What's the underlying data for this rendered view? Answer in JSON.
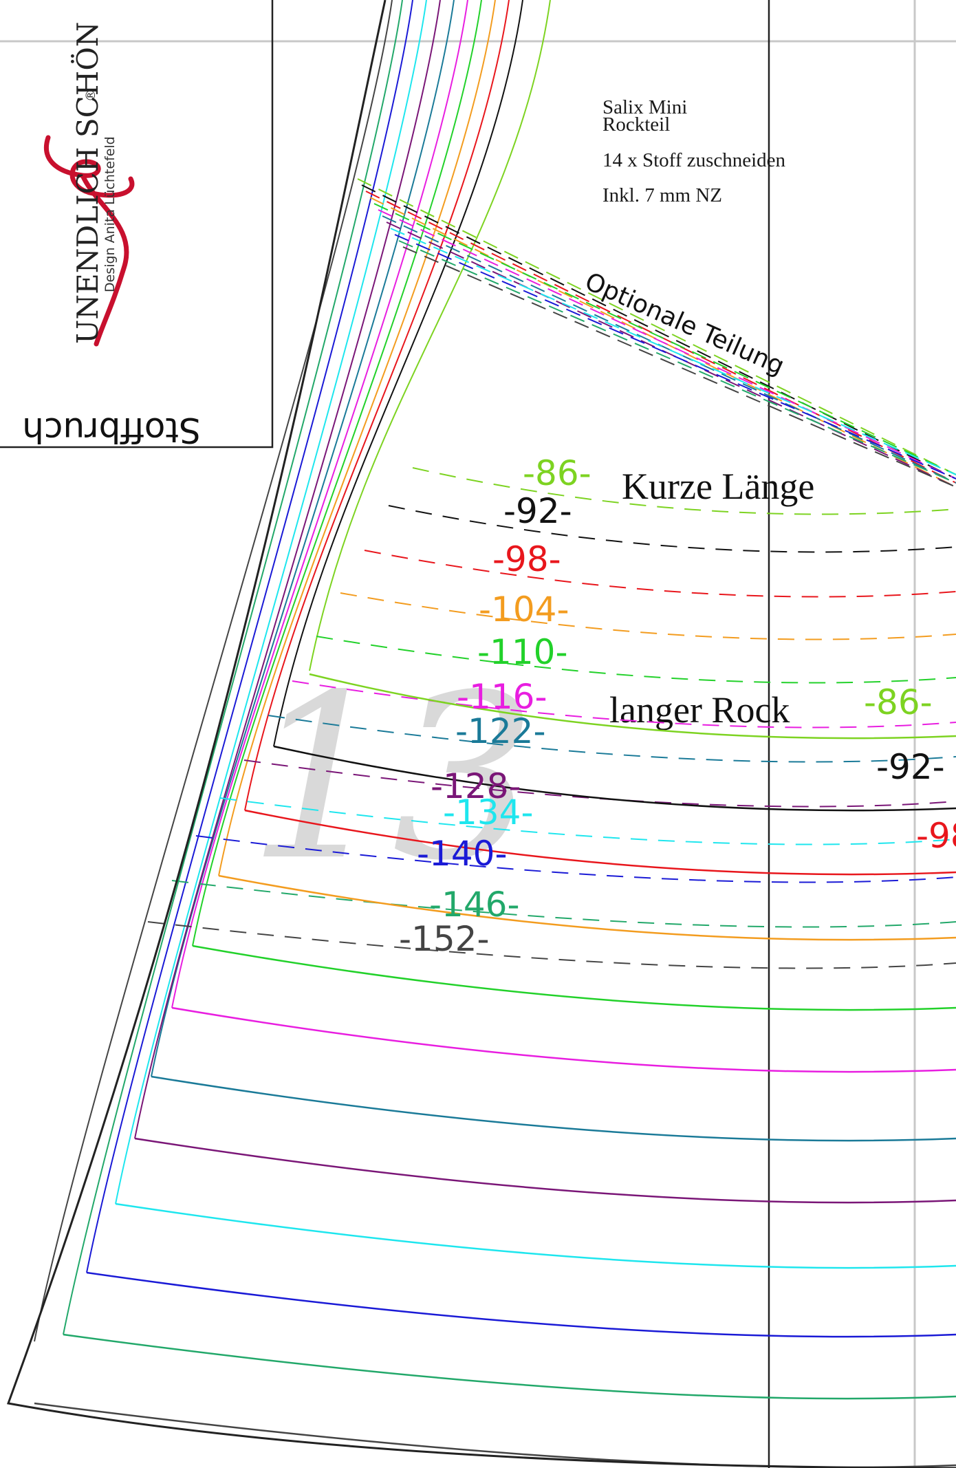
{
  "logo": {
    "brand": "UNENDLICH SCHÖN",
    "registered": "®",
    "subtitle": "Design Anita Lüchtefeld"
  },
  "fold_label": "Stoffbruch",
  "info": {
    "title_line1": "Salix Mini",
    "title_line2": "Rockteil",
    "cut_instruction": "14 x Stoff zuschneiden",
    "seam_allowance": "Inkl. 7 mm NZ"
  },
  "optional_split_label": "Optionale Teilung",
  "short_length_label": "Kurze Länge",
  "long_skirt_label": "langer Rock",
  "piece_number": "13",
  "colors": {
    "s86": "#7dd321",
    "s92": "#111111",
    "s98": "#e8161c",
    "s104": "#f39c1f",
    "s110": "#22d12a",
    "s116": "#e81ee0",
    "s122": "#1a7a98",
    "s128": "#7a1677",
    "s134": "#1ee6ee",
    "s140": "#1a1ad6",
    "s146": "#22a86a",
    "s152": "#444444"
  },
  "short_labels": [
    {
      "text": "-86-",
      "color": "#7dd321"
    },
    {
      "text": "-92-",
      "color": "#111111"
    },
    {
      "text": "-98-",
      "color": "#e8161c"
    },
    {
      "text": "-104-",
      "color": "#f39c1f"
    },
    {
      "text": "-110-",
      "color": "#22d12a"
    },
    {
      "text": "-116-",
      "color": "#e81ee0"
    },
    {
      "text": "-122-",
      "color": "#1a7a98"
    },
    {
      "text": "-128-",
      "color": "#7a1677"
    },
    {
      "text": "-134-",
      "color": "#1ee6ee"
    },
    {
      "text": "-140-",
      "color": "#1a1ad6"
    },
    {
      "text": "-146-",
      "color": "#22a86a"
    },
    {
      "text": "-152-",
      "color": "#444444"
    }
  ],
  "long_labels": [
    {
      "text": "-86-",
      "color": "#7dd321"
    },
    {
      "text": "-92-",
      "color": "#111111"
    },
    {
      "text": "-98",
      "color": "#e8161c"
    }
  ]
}
